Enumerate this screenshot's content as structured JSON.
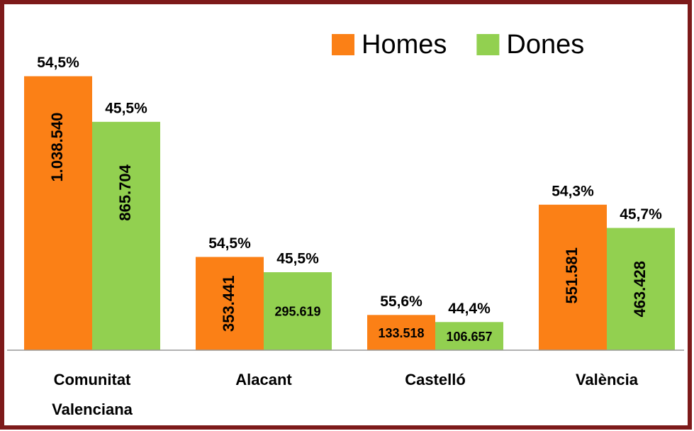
{
  "chart_data": {
    "type": "bar",
    "categories": [
      "Comunitat Valenciana",
      "Alacant",
      "Castelló",
      "València"
    ],
    "series": [
      {
        "name": "Homes",
        "color": "#fb8016",
        "values": [
          1038540,
          353441,
          133518,
          551581
        ],
        "value_labels": [
          "1.038.540",
          "353.441",
          "133.518",
          "551.581"
        ],
        "shares": [
          54.5,
          54.5,
          55.6,
          54.3
        ],
        "share_labels": [
          "54,5%",
          "54,5%",
          "55,6%",
          "54,3%"
        ]
      },
      {
        "name": "Dones",
        "color": "#92d050",
        "values": [
          865704,
          295619,
          106657,
          463428
        ],
        "value_labels": [
          "865.704",
          "295.619",
          "106.657",
          "463.428"
        ],
        "shares": [
          45.5,
          45.5,
          44.4,
          45.7
        ],
        "share_labels": [
          "45,5%",
          "45,5%",
          "44,4%",
          "45,7%"
        ]
      }
    ],
    "ylim": [
      0,
      1040000
    ],
    "legend": "top-right"
  }
}
